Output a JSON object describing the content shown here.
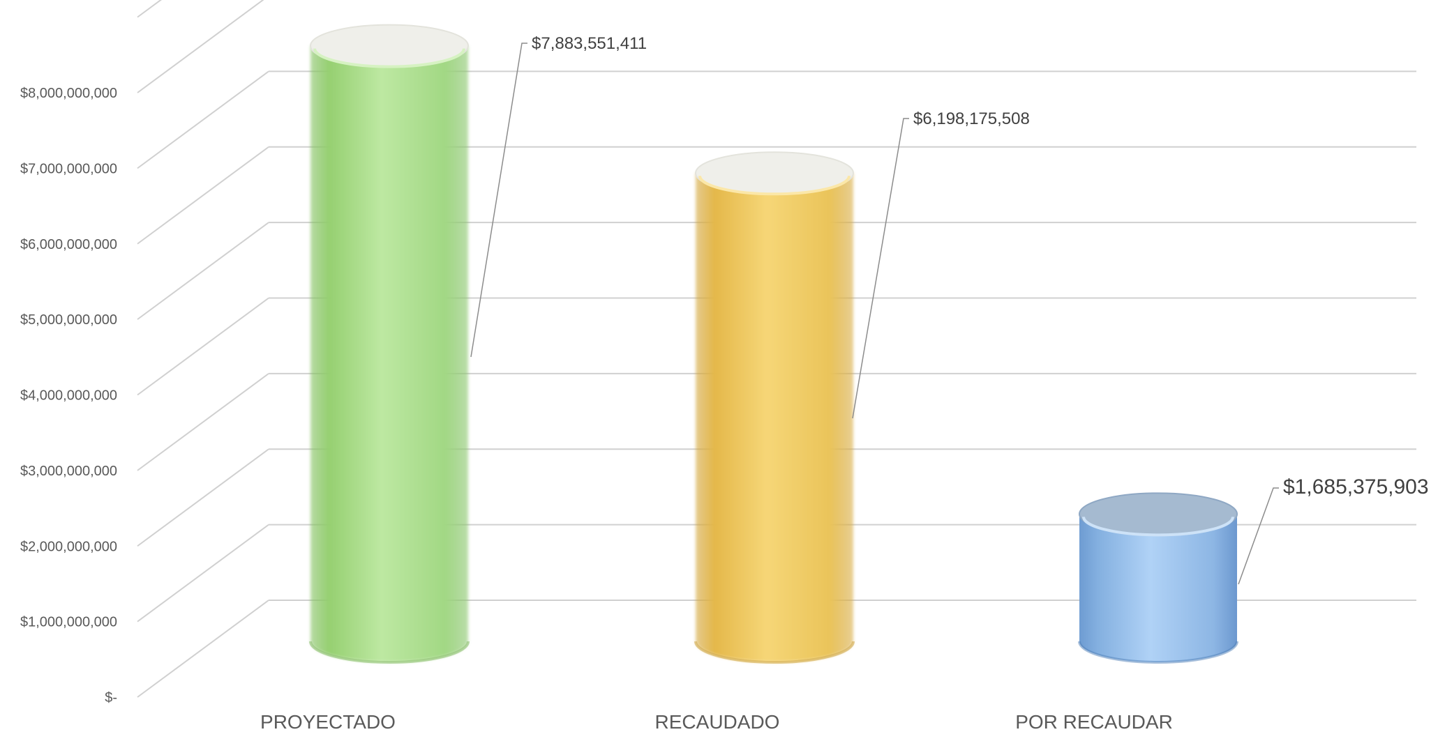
{
  "chart_data": {
    "type": "bar",
    "style": "3d-cylinder",
    "categories": [
      "PROYECTADO",
      "RECAUDADO",
      "POR RECAUDAR"
    ],
    "values": [
      7883551411,
      6198175508,
      1685375903
    ],
    "data_labels": [
      "$7,883,551,411",
      "$6,198,175,508",
      "$1,685,375,903"
    ],
    "colors": [
      "#A9DD8C",
      "#EDC860",
      "#9CC2EA"
    ],
    "yticks": [
      "$-",
      "$1,000,000,000",
      "$2,000,000,000",
      "$3,000,000,000",
      "$4,000,000,000",
      "$5,000,000,000",
      "$6,000,000,000",
      "$7,000,000,000",
      "$8,000,000,000"
    ],
    "ylim": [
      0,
      9000000000
    ],
    "title": "",
    "xlabel": "",
    "ylabel": "",
    "grid": true,
    "legend": "none"
  }
}
